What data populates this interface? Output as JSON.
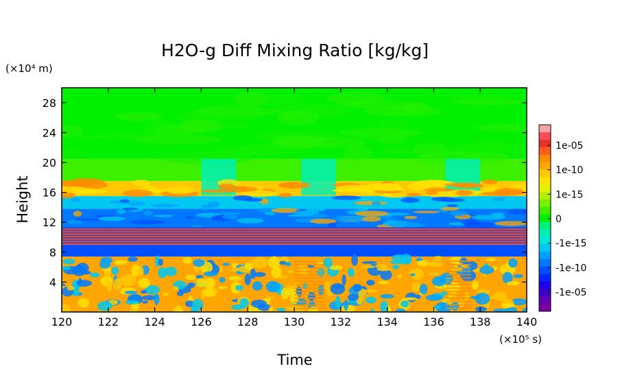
{
  "chart_data": {
    "type": "heatmap",
    "title": "H2O-g Diff Mixing Ratio [kg/kg]",
    "xlabel": "Time",
    "ylabel": "Height",
    "x_unit": "(×10⁵ s)",
    "y_unit": "(×10⁴ m)",
    "xlim": [
      120,
      140
    ],
    "ylim": [
      0,
      30
    ],
    "x_ticks": [
      120,
      122,
      124,
      126,
      128,
      130,
      132,
      134,
      136,
      138,
      140
    ],
    "y_ticks": [
      4,
      8,
      12,
      16,
      20,
      24,
      28
    ],
    "colorbar": {
      "tick_labels": [
        "1e-05",
        "1e-10",
        "1e-15",
        "0",
        "-1e-15",
        "-1e-10",
        "-1e-05"
      ],
      "colors": [
        "#f4a6a6",
        "#ff4a5a",
        "#e6322d",
        "#ff5a1e",
        "#ff8c00",
        "#ffa500",
        "#ffc800",
        "#ffe100",
        "#e6f000",
        "#b4f000",
        "#78f000",
        "#3cf000",
        "#00f000",
        "#00f078",
        "#00f0b4",
        "#00e6dc",
        "#00c8f0",
        "#00a0ff",
        "#0078ff",
        "#0050ff",
        "#0028ff",
        "#1e00e6",
        "#3c00c8",
        "#6400b4",
        "#7800a0"
      ]
    },
    "bands": [
      {
        "name": "upper-green",
        "y": [
          20.5,
          30
        ],
        "color": "#00f000"
      },
      {
        "name": "light-green",
        "y": [
          17.5,
          20.5
        ],
        "color": "#3cf000"
      },
      {
        "name": "orange-yellow",
        "y": [
          15.5,
          17.5
        ],
        "color": "#ffc800"
      },
      {
        "name": "cyan",
        "y": [
          13.8,
          15.5
        ],
        "color": "#00c8f0"
      },
      {
        "name": "blue-upper",
        "y": [
          11.2,
          13.8
        ],
        "color": "#0078ff"
      },
      {
        "name": "red-orange-stripes",
        "y": [
          9.0,
          11.2
        ],
        "color": "#ff5a1e"
      },
      {
        "name": "blue-lower",
        "y": [
          7.4,
          9.0
        ],
        "color": "#0050ff"
      },
      {
        "name": "orange-lower",
        "y": [
          0,
          7.4
        ],
        "color": "#ffa500"
      }
    ]
  }
}
